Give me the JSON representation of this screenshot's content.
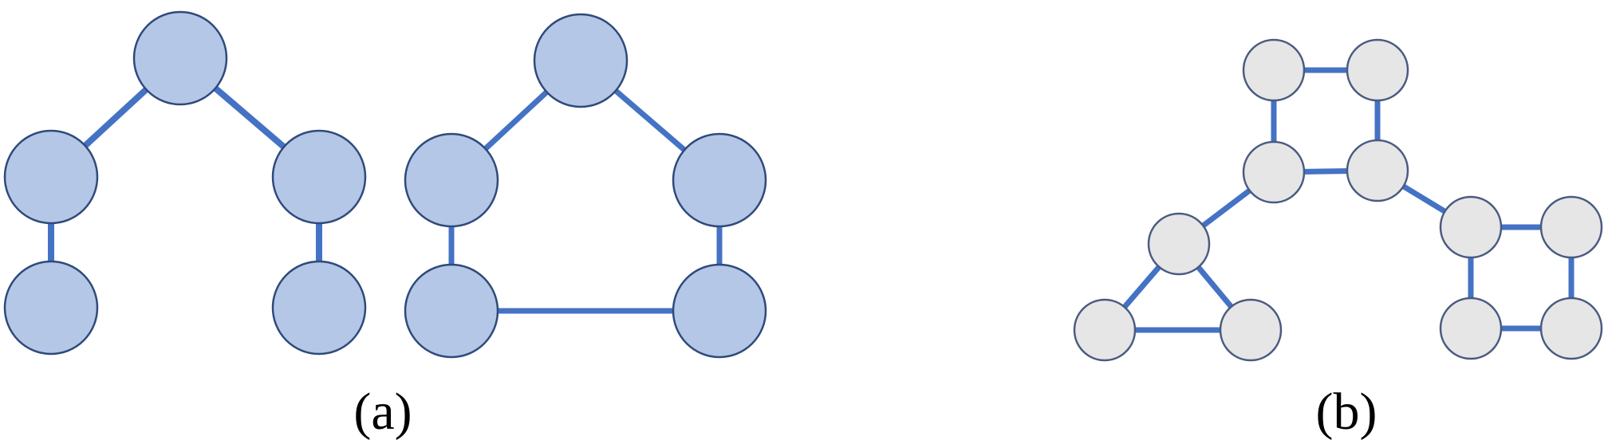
{
  "colors": {
    "edge": "#4472C4",
    "node_a_fill": "#B4C7E7",
    "node_a_stroke": "#2F4A7A",
    "node_b_fill": "#E6E6E6",
    "node_b_stroke": "#4A5A80",
    "caption": "#000000"
  },
  "panels": [
    {
      "caption": "(a)",
      "graphs": [
        {
          "description_free": true,
          "nodes": [
            "n1",
            "n2",
            "n3",
            "n4",
            "n5"
          ],
          "edges": [
            [
              "n1",
              "n2"
            ],
            [
              "n1",
              "n3"
            ],
            [
              "n2",
              "n4"
            ],
            [
              "n3",
              "n5"
            ]
          ]
        },
        {
          "nodes": [
            "n1",
            "n2",
            "n3",
            "n4",
            "n5"
          ],
          "edges": [
            [
              "n1",
              "n2"
            ],
            [
              "n1",
              "n3"
            ],
            [
              "n2",
              "n4"
            ],
            [
              "n3",
              "n5"
            ],
            [
              "n4",
              "n5"
            ]
          ]
        }
      ]
    },
    {
      "caption": "(b)",
      "graphs": [
        {
          "nodes": [
            "s1",
            "s2",
            "s3",
            "s4",
            "t1",
            "t2",
            "t3",
            "r1",
            "r2",
            "r3",
            "r4"
          ],
          "edges": [
            [
              "s1",
              "s2"
            ],
            [
              "s1",
              "s3"
            ],
            [
              "s2",
              "s4"
            ],
            [
              "s3",
              "s4"
            ],
            [
              "s3",
              "t1"
            ],
            [
              "t1",
              "t2"
            ],
            [
              "t1",
              "t3"
            ],
            [
              "t2",
              "t3"
            ],
            [
              "s4",
              "r1"
            ],
            [
              "r1",
              "r2"
            ],
            [
              "r1",
              "r3"
            ],
            [
              "r2",
              "r4"
            ],
            [
              "r3",
              "r4"
            ]
          ]
        }
      ]
    }
  ]
}
